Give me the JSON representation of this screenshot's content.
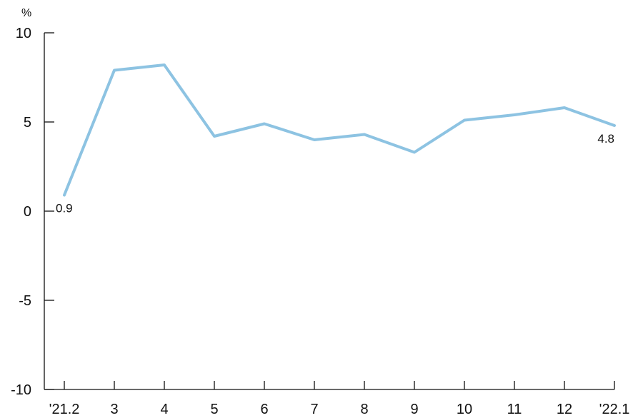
{
  "chart_data": {
    "type": "line",
    "title": "",
    "xlabel": "",
    "ylabel": "",
    "y_unit": "%",
    "categories": [
      "'21.2",
      "3",
      "4",
      "5",
      "6",
      "7",
      "8",
      "9",
      "10",
      "11",
      "12",
      "'22.1"
    ],
    "series": [
      {
        "values": [
          0.9,
          7.9,
          8.2,
          4.2,
          4.9,
          4.0,
          4.3,
          3.3,
          5.1,
          5.4,
          5.8,
          4.8
        ],
        "color": "#8DC3E2"
      }
    ],
    "data_labels": [
      {
        "index": 0,
        "text": "0.9",
        "position": "below"
      },
      {
        "index": 11,
        "text": "4.8",
        "position": "below"
      }
    ],
    "ylim": [
      -10,
      10
    ],
    "yticks": [
      10,
      5,
      0,
      -5,
      -10
    ],
    "ytick_labels": [
      "10",
      "5",
      "0",
      "-5",
      "-10"
    ],
    "grid": false,
    "legend": "none"
  }
}
